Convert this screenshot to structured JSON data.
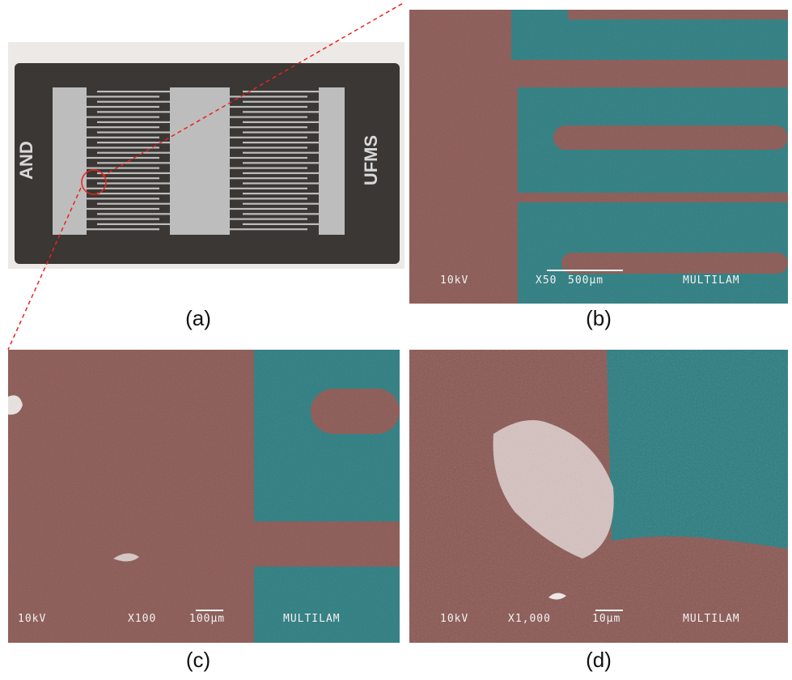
{
  "panels": {
    "a": {
      "caption": "(a)",
      "left_label": "AND",
      "right_label": "UFMS"
    },
    "b": {
      "caption": "(b)",
      "voltage": "10kV",
      "magnification": "X50",
      "scale": "500µm",
      "brand": "MULTILAM"
    },
    "c": {
      "caption": "(c)",
      "voltage": "10kV",
      "magnification": "X100",
      "scale": "100µm",
      "brand": "MULTILAM"
    },
    "d": {
      "caption": "(d)",
      "voltage": "10kV",
      "magnification": "X1,000",
      "scale": "10µm",
      "brand": "MULTILAM"
    }
  },
  "colors": {
    "substrate": "#8a5752",
    "electrode": "#2a7c80",
    "photo_background": "#ece9e6",
    "device_body": "#3a3734",
    "comb_metal": "#bdbdbd",
    "guide_line": "#e8231d"
  }
}
